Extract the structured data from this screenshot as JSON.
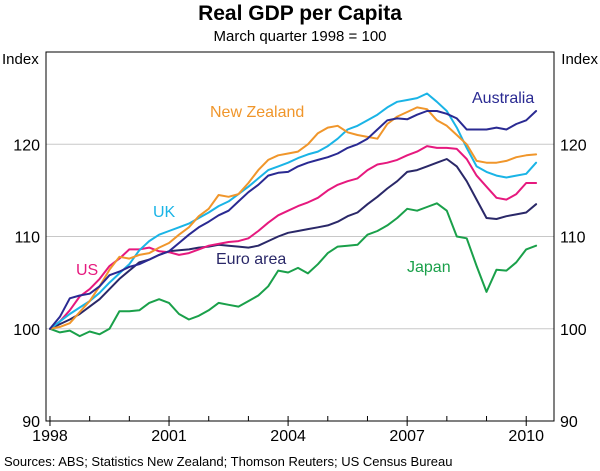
{
  "chart_data": {
    "type": "line",
    "title": "Real GDP per Capita",
    "subtitle": "March quarter 1998 = 100",
    "ylabel_left": "Index",
    "ylabel_right": "Index",
    "ylim": [
      90,
      130
    ],
    "yticks": [
      90,
      100,
      110,
      120
    ],
    "xlim": [
      1997.9,
      2010.7
    ],
    "xticks": [
      1998,
      2001,
      2004,
      2007,
      2010
    ],
    "grid": true,
    "source": "Sources: ABS; Statistics New Zealand; Thomson Reuters; US Census Bureau",
    "series": [
      {
        "name": "Japan",
        "color": "#1aa04a",
        "x": [
          1998.0,
          1998.25,
          1998.5,
          1998.75,
          1999.0,
          1999.25,
          1999.5,
          1999.75,
          2000.0,
          2000.25,
          2000.5,
          2000.75,
          2001.0,
          2001.25,
          2001.5,
          2001.75,
          2002.0,
          2002.25,
          2002.5,
          2002.75,
          2003.0,
          2003.25,
          2003.5,
          2003.75,
          2004.0,
          2004.25,
          2004.5,
          2004.75,
          2005.0,
          2005.25,
          2005.5,
          2005.75,
          2006.0,
          2006.25,
          2006.5,
          2006.75,
          2007.0,
          2007.25,
          2007.5,
          2007.75,
          2008.0,
          2008.25,
          2008.5,
          2008.75,
          2009.0,
          2009.25,
          2009.5,
          2009.75,
          2010.0,
          2010.25
        ],
        "values": [
          100.0,
          99.6,
          99.8,
          99.2,
          99.7,
          99.4,
          100.0,
          101.9,
          101.9,
          102.0,
          102.8,
          103.2,
          102.8,
          101.6,
          101.0,
          101.4,
          102.0,
          102.8,
          102.6,
          102.4,
          103.0,
          103.6,
          104.6,
          106.3,
          106.1,
          106.6,
          106.0,
          107.0,
          108.2,
          108.9,
          109.0,
          109.1,
          110.2,
          110.6,
          111.2,
          112.0,
          113.0,
          112.8,
          113.2,
          113.6,
          112.8,
          110.0,
          109.8,
          106.8,
          104.0,
          106.4,
          106.3,
          107.2,
          108.6,
          109.0
        ]
      },
      {
        "name": "Euro area",
        "color": "#2a2868",
        "x": [
          1998.0,
          1998.25,
          1998.5,
          1998.75,
          1999.0,
          1999.25,
          1999.5,
          1999.75,
          2000.0,
          2000.25,
          2000.5,
          2000.75,
          2001.0,
          2001.25,
          2001.5,
          2001.75,
          2002.0,
          2002.25,
          2002.5,
          2002.75,
          2003.0,
          2003.25,
          2003.5,
          2003.75,
          2004.0,
          2004.25,
          2004.5,
          2004.75,
          2005.0,
          2005.25,
          2005.5,
          2005.75,
          2006.0,
          2006.25,
          2006.5,
          2006.75,
          2007.0,
          2007.25,
          2007.5,
          2007.75,
          2008.0,
          2008.25,
          2008.5,
          2008.75,
          2009.0,
          2009.25,
          2009.5,
          2009.75,
          2010.0,
          2010.25
        ],
        "values": [
          100.0,
          100.5,
          101.0,
          101.6,
          102.4,
          103.2,
          104.3,
          105.4,
          106.3,
          107.2,
          107.5,
          108.0,
          108.4,
          108.5,
          108.6,
          108.8,
          108.9,
          109.1,
          109.0,
          108.9,
          108.8,
          109.0,
          109.5,
          110.0,
          110.4,
          110.6,
          110.8,
          111.0,
          111.2,
          111.6,
          112.2,
          112.6,
          113.5,
          114.3,
          115.2,
          116.0,
          117.0,
          117.2,
          117.6,
          118.0,
          118.4,
          117.6,
          116.0,
          114.0,
          112.0,
          111.9,
          112.2,
          112.4,
          112.6,
          113.5
        ]
      },
      {
        "name": "US",
        "color": "#e6197e",
        "x": [
          1998.0,
          1998.25,
          1998.5,
          1998.75,
          1999.0,
          1999.25,
          1999.5,
          1999.75,
          2000.0,
          2000.25,
          2000.5,
          2000.75,
          2001.0,
          2001.25,
          2001.5,
          2001.75,
          2002.0,
          2002.25,
          2002.5,
          2002.75,
          2003.0,
          2003.25,
          2003.5,
          2003.75,
          2004.0,
          2004.25,
          2004.5,
          2004.75,
          2005.0,
          2005.25,
          2005.5,
          2005.75,
          2006.0,
          2006.25,
          2006.5,
          2006.75,
          2007.0,
          2007.25,
          2007.5,
          2007.75,
          2008.0,
          2008.25,
          2008.5,
          2008.75,
          2009.0,
          2009.25,
          2009.5,
          2009.75,
          2010.0,
          2010.25
        ],
        "values": [
          100.0,
          100.8,
          102.0,
          103.5,
          104.3,
          105.4,
          106.8,
          107.6,
          108.6,
          108.6,
          108.8,
          108.4,
          108.3,
          108.0,
          108.2,
          108.6,
          109.0,
          109.2,
          109.4,
          109.5,
          109.8,
          110.6,
          111.5,
          112.3,
          112.8,
          113.3,
          113.7,
          114.2,
          115.0,
          115.6,
          116.0,
          116.3,
          117.2,
          117.8,
          118.0,
          118.3,
          118.8,
          119.2,
          119.8,
          119.6,
          119.6,
          119.5,
          118.4,
          116.6,
          115.4,
          114.2,
          114.0,
          114.6,
          115.8,
          115.8
        ]
      },
      {
        "name": "UK",
        "color": "#1ab4e6",
        "x": [
          1998.0,
          1998.25,
          1998.5,
          1998.75,
          1999.0,
          1999.25,
          1999.5,
          1999.75,
          2000.0,
          2000.25,
          2000.5,
          2000.75,
          2001.0,
          2001.25,
          2001.5,
          2001.75,
          2002.0,
          2002.25,
          2002.5,
          2002.75,
          2003.0,
          2003.25,
          2003.5,
          2003.75,
          2004.0,
          2004.25,
          2004.5,
          2004.75,
          2005.0,
          2005.25,
          2005.5,
          2005.75,
          2006.0,
          2006.25,
          2006.5,
          2006.75,
          2007.0,
          2007.25,
          2007.5,
          2007.75,
          2008.0,
          2008.25,
          2008.5,
          2008.75,
          2009.0,
          2009.25,
          2009.5,
          2009.75,
          2010.0,
          2010.25
        ],
        "values": [
          100.0,
          100.8,
          101.6,
          102.3,
          103.0,
          103.9,
          105.0,
          106.0,
          107.0,
          108.5,
          109.5,
          110.2,
          110.6,
          111.0,
          111.4,
          112.0,
          112.6,
          113.3,
          113.8,
          114.6,
          115.4,
          116.3,
          117.2,
          117.6,
          118.0,
          118.5,
          118.9,
          119.2,
          119.8,
          120.6,
          121.6,
          122.0,
          122.6,
          123.2,
          124.0,
          124.6,
          124.8,
          125.0,
          125.5,
          124.6,
          123.6,
          121.8,
          119.6,
          117.6,
          117.0,
          116.6,
          116.4,
          116.6,
          116.8,
          118.0
        ]
      },
      {
        "name": "New Zealand",
        "color": "#f0962b",
        "x": [
          1998.0,
          1998.25,
          1998.5,
          1998.75,
          1999.0,
          1999.25,
          1999.5,
          1999.75,
          2000.0,
          2000.25,
          2000.5,
          2000.75,
          2001.0,
          2001.25,
          2001.5,
          2001.75,
          2002.0,
          2002.25,
          2002.5,
          2002.75,
          2003.0,
          2003.25,
          2003.5,
          2003.75,
          2004.0,
          2004.25,
          2004.5,
          2004.75,
          2005.0,
          2005.25,
          2005.5,
          2005.75,
          2006.0,
          2006.25,
          2006.5,
          2006.75,
          2007.0,
          2007.25,
          2007.5,
          2007.75,
          2008.0,
          2008.25,
          2008.5,
          2008.75,
          2009.0,
          2009.25,
          2009.5,
          2009.75,
          2010.0,
          2010.25
        ],
        "values": [
          100.0,
          100.2,
          100.6,
          101.8,
          103.0,
          104.6,
          106.4,
          107.8,
          107.6,
          108.0,
          108.2,
          108.8,
          109.3,
          110.2,
          111.0,
          112.2,
          113.0,
          114.5,
          114.3,
          114.6,
          115.8,
          117.2,
          118.3,
          118.8,
          119.0,
          119.2,
          120.0,
          121.2,
          121.8,
          122.0,
          121.3,
          121.0,
          120.8,
          120.6,
          122.2,
          123.0,
          123.5,
          124.0,
          123.8,
          122.6,
          122.0,
          121.0,
          120.0,
          118.2,
          118.0,
          118.0,
          118.2,
          118.6,
          118.8,
          118.9
        ]
      },
      {
        "name": "Australia",
        "color": "#2a2a92",
        "x": [
          1998.0,
          1998.25,
          1998.5,
          1998.75,
          1999.0,
          1999.25,
          1999.5,
          1999.75,
          2000.0,
          2000.25,
          2000.5,
          2000.75,
          2001.0,
          2001.25,
          2001.5,
          2001.75,
          2002.0,
          2002.25,
          2002.5,
          2002.75,
          2003.0,
          2003.25,
          2003.5,
          2003.75,
          2004.0,
          2004.25,
          2004.5,
          2004.75,
          2005.0,
          2005.25,
          2005.5,
          2005.75,
          2006.0,
          2006.25,
          2006.5,
          2006.75,
          2007.0,
          2007.25,
          2007.5,
          2007.75,
          2008.0,
          2008.25,
          2008.5,
          2008.75,
          2009.0,
          2009.25,
          2009.5,
          2009.75,
          2010.0,
          2010.25
        ],
        "values": [
          100.0,
          101.3,
          103.3,
          103.6,
          103.8,
          104.6,
          105.8,
          106.2,
          106.7,
          107.0,
          107.5,
          108.0,
          108.4,
          109.3,
          110.2,
          111.0,
          111.6,
          112.3,
          112.8,
          113.8,
          114.8,
          115.6,
          116.6,
          116.9,
          117.0,
          117.6,
          118.0,
          118.3,
          118.6,
          119.0,
          119.6,
          120.0,
          120.6,
          121.6,
          122.6,
          122.8,
          122.7,
          123.2,
          123.6,
          123.6,
          123.3,
          122.8,
          121.6,
          121.6,
          121.6,
          121.8,
          121.6,
          122.2,
          122.6,
          123.6
        ]
      }
    ],
    "labels": [
      {
        "text": "New Zealand",
        "series": "New Zealand"
      },
      {
        "text": "Australia",
        "series": "Australia"
      },
      {
        "text": "UK",
        "series": "UK"
      },
      {
        "text": "US",
        "series": "US"
      },
      {
        "text": "Euro area",
        "series": "Euro area"
      },
      {
        "text": "Japan",
        "series": "Japan"
      }
    ]
  }
}
